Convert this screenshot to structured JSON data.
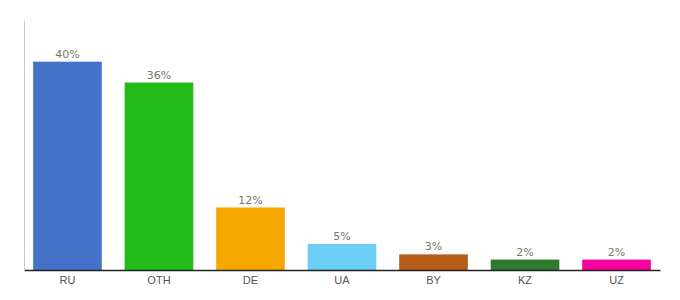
{
  "chart_data": {
    "type": "bar",
    "categories": [
      "RU",
      "OTH",
      "DE",
      "UA",
      "BY",
      "KZ",
      "UZ"
    ],
    "values": [
      40,
      36,
      12,
      5,
      3,
      2,
      2
    ],
    "value_labels": [
      "40%",
      "36%",
      "12%",
      "5%",
      "3%",
      "2%",
      "2%"
    ],
    "colors": [
      "#4472c9",
      "#22bb1a",
      "#f5a800",
      "#6dcff6",
      "#b85c1a",
      "#2d7a2d",
      "#f700a0"
    ],
    "ylim": [
      0,
      48
    ],
    "data_labels": true,
    "tick_labels": "x",
    "grid": false
  }
}
